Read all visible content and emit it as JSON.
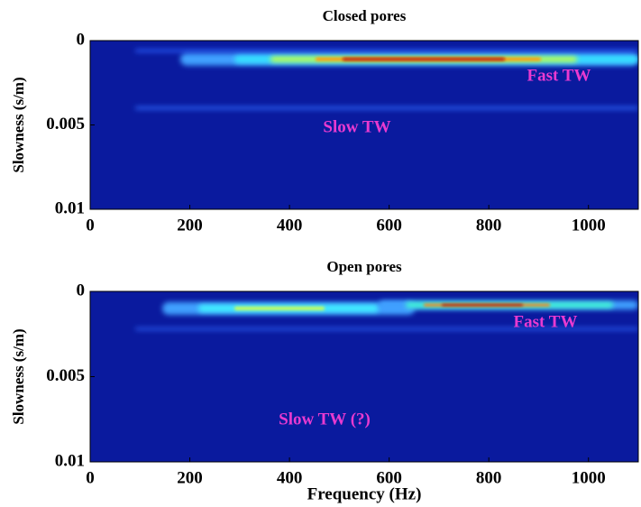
{
  "chart_data": [
    {
      "type": "heatmap",
      "title": "Closed pores",
      "ylabel": "Slowness (s/m)",
      "xlim": [
        0,
        1100
      ],
      "xticks": [
        0,
        200,
        400,
        600,
        800,
        1000
      ],
      "ylim": [
        0,
        0.01
      ],
      "yticks": [
        0,
        0.005,
        0.01
      ],
      "y_reversed": true,
      "annotation_color": "#e83ad0",
      "annotations": [
        "Fast TW",
        "Slow TW"
      ]
    },
    {
      "type": "heatmap",
      "title": "Open pores",
      "ylabel": "Slowness (s/m)",
      "xlabel": "Frequency (Hz)",
      "xlim": [
        0,
        1100
      ],
      "xticks": [
        0,
        200,
        400,
        600,
        800,
        1000
      ],
      "ylim": [
        0,
        0.01
      ],
      "yticks": [
        0,
        0.005,
        0.01
      ],
      "y_reversed": true,
      "annotation_color": "#e83ad0",
      "annotations": [
        "Fast TW",
        "Slow TW (?)"
      ]
    }
  ]
}
